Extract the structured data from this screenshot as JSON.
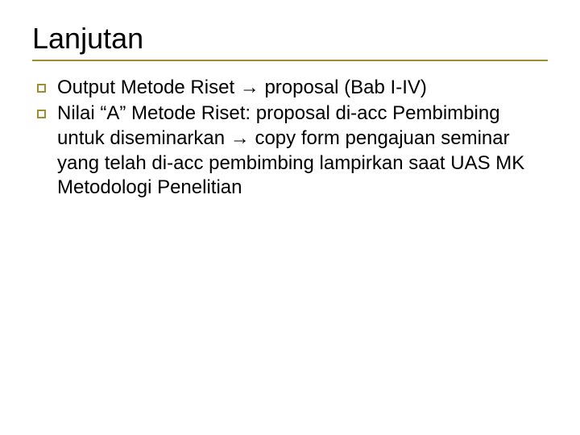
{
  "slide": {
    "title": "Lanjutan",
    "title_fontsize": 36,
    "title_color": "#000000",
    "rule_color": "#a28b36",
    "bullet_color": "#a28b36",
    "body_fontsize": 24,
    "body_color": "#000000",
    "background_color": "#ffffff",
    "bullets": [
      "Output Metode Riset → proposal (Bab I-IV)",
      "Nilai “A” Metode Riset: proposal di-acc Pembimbing untuk diseminarkan → copy form pengajuan seminar yang telah di-acc pembimbing lampirkan saat UAS MK Metodologi Penelitian"
    ]
  }
}
